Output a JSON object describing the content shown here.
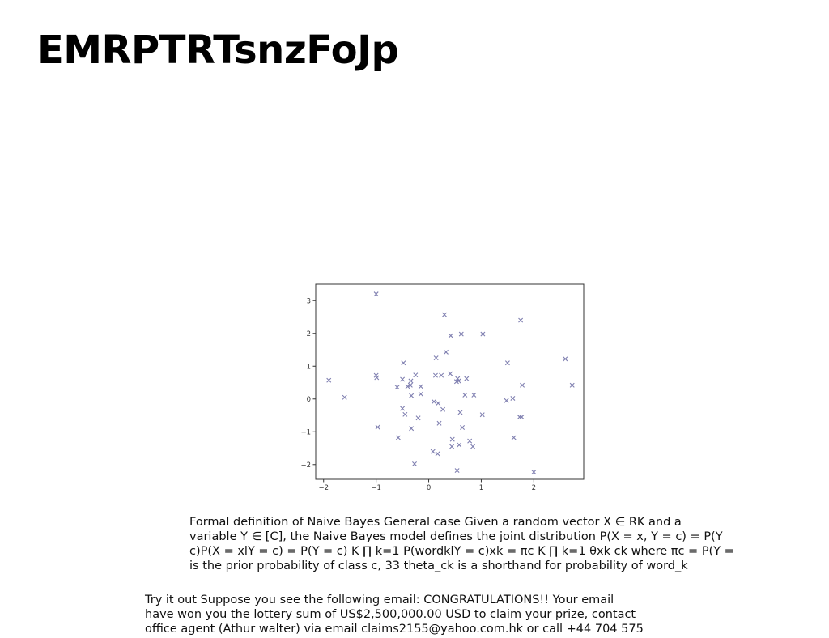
{
  "slide": {
    "title": "EMRPTRTsnzFoJp"
  },
  "paragraph_1": {
    "lines": [
      "Formal definition of Naive Bayes General case Given a random vector X ∈ RK and a",
      "variable Y ∈ [C], the Naive Bayes model defines the joint distribution P(X = x, Y = c) = P(Y",
      "c)P(X = xlY = c) = P(Y = c) K ∏ k=1 P(wordklY = c)xk = πc K ∏ k=1 θxk ck where πc = P(Y =",
      "is the prior probability of class c, 33 theta_ck is a shorthand for probability of word_k"
    ]
  },
  "paragraph_2": {
    "lines": [
      "Try it out Suppose you see the following email: CONGRATULATIONS!! Your email",
      "have won you the lottery sum of US$2,500,000.00 USD to claim your prize, contact",
      "office agent (Athur walter) via email claims2155@yahoo.com.hk or call +44 704 575"
    ]
  },
  "chart_data": {
    "type": "scatter",
    "marker": "x",
    "color": "#7f7fb0",
    "xlim": [
      -2.15,
      2.95
    ],
    "ylim": [
      -2.45,
      3.5
    ],
    "xticks": [
      -2,
      -1,
      0,
      1,
      2
    ],
    "yticks": [
      -2,
      -1,
      0,
      1,
      2,
      3
    ],
    "xtick_labels": [
      "−2",
      "−1",
      "0",
      "1",
      "2"
    ],
    "ytick_labels": [
      "−2",
      "−1",
      "0",
      "1",
      "2",
      "3"
    ],
    "grid": false,
    "points": [
      [
        -1.0,
        3.2
      ],
      [
        0.3,
        2.57
      ],
      [
        1.75,
        2.4
      ],
      [
        0.42,
        1.93
      ],
      [
        0.62,
        1.98
      ],
      [
        1.03,
        1.98
      ],
      [
        2.6,
        1.22
      ],
      [
        0.33,
        1.43
      ],
      [
        0.14,
        1.25
      ],
      [
        1.5,
        1.1
      ],
      [
        -0.48,
        1.1
      ],
      [
        -0.25,
        0.73
      ],
      [
        -1.0,
        0.72
      ],
      [
        -0.99,
        0.65
      ],
      [
        -0.5,
        0.6
      ],
      [
        -1.9,
        0.57
      ],
      [
        -0.34,
        0.55
      ],
      [
        -0.35,
        0.42
      ],
      [
        -0.4,
        0.38
      ],
      [
        -0.6,
        0.36
      ],
      [
        -0.15,
        0.38
      ],
      [
        0.13,
        0.72
      ],
      [
        0.24,
        0.72
      ],
      [
        0.41,
        0.77
      ],
      [
        0.55,
        0.62
      ],
      [
        0.53,
        0.53
      ],
      [
        0.72,
        0.62
      ],
      [
        0.57,
        0.55
      ],
      [
        2.73,
        0.42
      ],
      [
        1.78,
        0.42
      ],
      [
        -1.6,
        0.05
      ],
      [
        -0.33,
        0.1
      ],
      [
        -0.15,
        0.15
      ],
      [
        0.69,
        0.12
      ],
      [
        0.86,
        0.12
      ],
      [
        1.48,
        -0.05
      ],
      [
        1.6,
        0.02
      ],
      [
        0.1,
        -0.08
      ],
      [
        0.18,
        -0.13
      ],
      [
        -0.5,
        -0.29
      ],
      [
        -0.45,
        -0.47
      ],
      [
        0.27,
        -0.32
      ],
      [
        0.6,
        -0.41
      ],
      [
        1.02,
        -0.48
      ],
      [
        1.73,
        -0.55
      ],
      [
        1.77,
        -0.55
      ],
      [
        -0.2,
        -0.58
      ],
      [
        0.2,
        -0.74
      ],
      [
        -0.97,
        -0.86
      ],
      [
        -0.33,
        -0.9
      ],
      [
        0.64,
        -0.87
      ],
      [
        -0.58,
        -1.18
      ],
      [
        0.45,
        -1.23
      ],
      [
        1.62,
        -1.18
      ],
      [
        0.78,
        -1.28
      ],
      [
        0.44,
        -1.45
      ],
      [
        0.58,
        -1.4
      ],
      [
        0.84,
        -1.45
      ],
      [
        0.08,
        -1.6
      ],
      [
        0.17,
        -1.67
      ],
      [
        -0.27,
        -1.98
      ],
      [
        0.54,
        -2.18
      ],
      [
        2.0,
        -2.23
      ]
    ]
  }
}
